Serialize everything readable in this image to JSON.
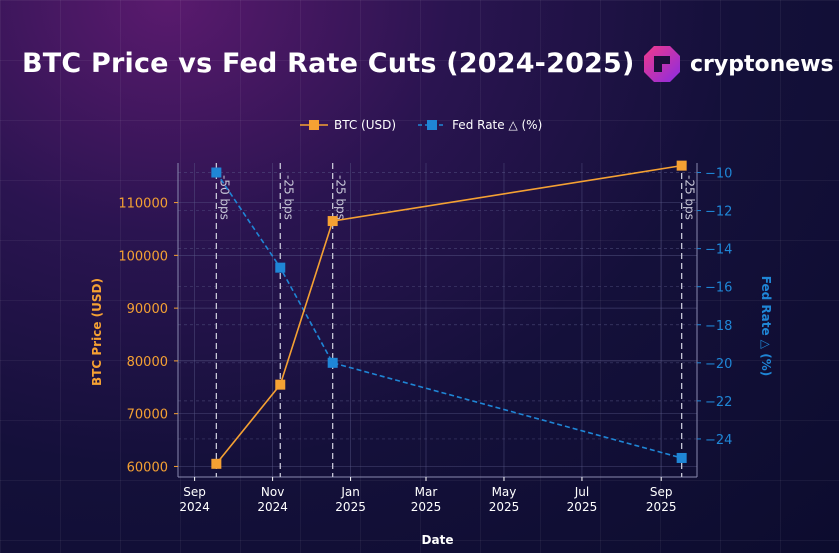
{
  "header": {
    "title": "BTC Price vs Fed Rate Cuts (2024-2025)",
    "brand": "cryptonews"
  },
  "colors": {
    "btc": "#f5a133",
    "fed": "#1f86d6",
    "grid": "#5b5b8a",
    "text": "#ffffff",
    "annotation": "#c8c8d8"
  },
  "chart_data": {
    "type": "line",
    "xlabel": "Date",
    "ylabel": "BTC Price (USD)",
    "y2label": "Fed Rate △ (%)",
    "x_ticks": [
      "Sep\n2024",
      "Nov\n2024",
      "Jan\n2025",
      "Mar\n2025",
      "May\n2025",
      "Jul\n2025",
      "Sep\n2025"
    ],
    "x_tick_dates": [
      "2024-09-01",
      "2024-11-01",
      "2025-01-01",
      "2025-03-01",
      "2025-05-01",
      "2025-07-01",
      "2025-09-01"
    ],
    "xlim": [
      "2024-08-19",
      "2025-09-29"
    ],
    "ylim": [
      58000,
      117500
    ],
    "y_ticks": [
      60000,
      70000,
      80000,
      90000,
      100000,
      110000
    ],
    "y2lim": [
      -26,
      -9.5
    ],
    "y2_ticks": [
      -10,
      -12,
      -14,
      -16,
      -18,
      -20,
      -22,
      -24
    ],
    "legend_position": "top-center",
    "grid": true,
    "series": [
      {
        "name": "BTC (USD)",
        "axis": "left",
        "points": [
          {
            "x": "2024-09-18",
            "y": 60500
          },
          {
            "x": "2024-11-07",
            "y": 75500
          },
          {
            "x": "2024-12-18",
            "y": 106500
          },
          {
            "x": "2025-09-17",
            "y": 117000
          }
        ]
      },
      {
        "name": "Fed Rate △ (%)",
        "axis": "right",
        "points": [
          {
            "x": "2024-09-18",
            "y": -10
          },
          {
            "x": "2024-11-07",
            "y": -15
          },
          {
            "x": "2024-12-18",
            "y": -20
          },
          {
            "x": "2025-09-17",
            "y": -25
          }
        ]
      }
    ],
    "annotations": [
      {
        "x": "2024-09-18",
        "text": "-50 bps"
      },
      {
        "x": "2024-11-07",
        "text": "-25 bps"
      },
      {
        "x": "2024-12-18",
        "text": "-25 bps"
      },
      {
        "x": "2025-09-17",
        "text": "-25 bps"
      }
    ]
  }
}
